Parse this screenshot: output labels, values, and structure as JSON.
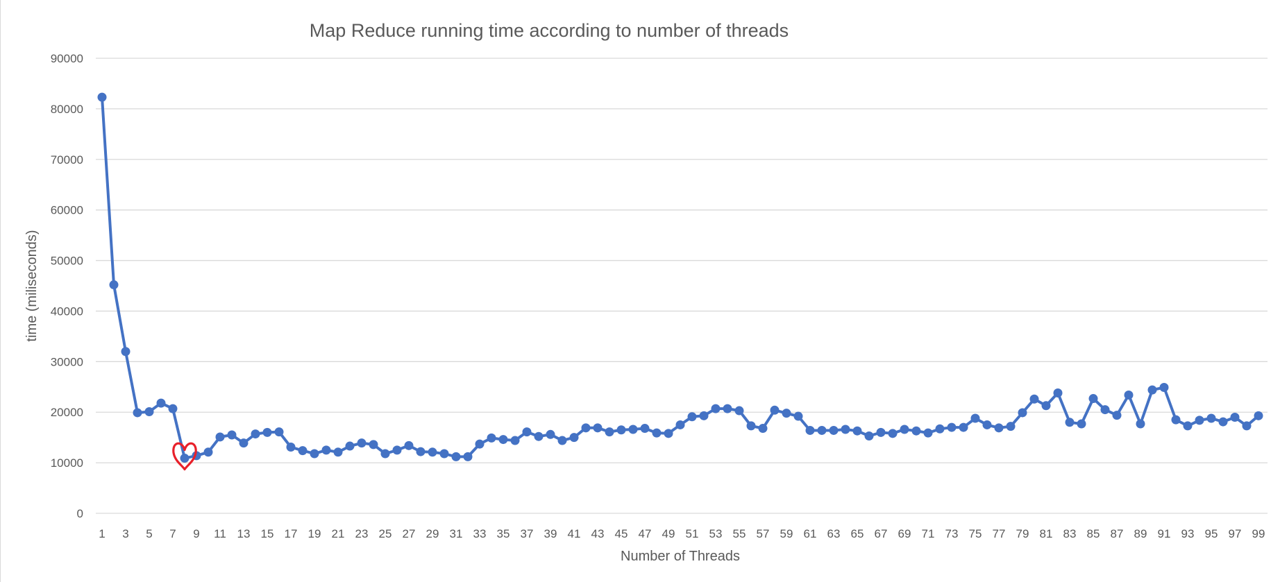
{
  "chart_data": {
    "type": "line",
    "title": "Map Reduce running time according to number of threads",
    "xlabel": "Number of Threads",
    "ylabel": "time (miliseconds)",
    "ylim": [
      0,
      90000
    ],
    "yticks": [
      "0",
      "10000",
      "20000",
      "30000",
      "40000",
      "50000",
      "60000",
      "70000",
      "80000",
      "90000"
    ],
    "grid": true,
    "legend": "none",
    "x": [
      1,
      2,
      3,
      4,
      5,
      6,
      7,
      8,
      9,
      10,
      11,
      12,
      13,
      14,
      15,
      16,
      17,
      18,
      19,
      20,
      21,
      22,
      23,
      24,
      25,
      26,
      27,
      28,
      29,
      30,
      31,
      32,
      33,
      34,
      35,
      36,
      37,
      38,
      39,
      40,
      41,
      42,
      43,
      44,
      45,
      46,
      47,
      48,
      49,
      50,
      51,
      52,
      53,
      54,
      55,
      56,
      57,
      58,
      59,
      60,
      61,
      62,
      63,
      64,
      65,
      66,
      67,
      68,
      69,
      70,
      71,
      72,
      73,
      74,
      75,
      76,
      77,
      78,
      79,
      80,
      81,
      82,
      83,
      84,
      85,
      86,
      87,
      88,
      89,
      90,
      91,
      92,
      93,
      94,
      95,
      96,
      97,
      98,
      99
    ],
    "xtick_labels": [
      "1",
      "3",
      "5",
      "7",
      "9",
      "11",
      "13",
      "15",
      "17",
      "19",
      "21",
      "23",
      "25",
      "27",
      "29",
      "31",
      "33",
      "35",
      "37",
      "39",
      "41",
      "43",
      "45",
      "47",
      "49",
      "51",
      "53",
      "55",
      "57",
      "59",
      "61",
      "63",
      "65",
      "67",
      "69",
      "71",
      "73",
      "75",
      "77",
      "79",
      "81",
      "83",
      "85",
      "87",
      "89",
      "91",
      "93",
      "95",
      "97",
      "99"
    ],
    "series": [
      {
        "color": "#4472c4",
        "values": [
          82300,
          45200,
          32000,
          19900,
          20100,
          21800,
          20700,
          10900,
          11400,
          12100,
          15100,
          15500,
          13900,
          15700,
          16000,
          16100,
          13100,
          12400,
          11800,
          12500,
          12100,
          13300,
          13900,
          13600,
          11800,
          12500,
          13400,
          12200,
          12100,
          11800,
          11200,
          11200,
          13700,
          14900,
          14600,
          14400,
          16100,
          15200,
          15600,
          14400,
          15000,
          16900,
          16900,
          16100,
          16500,
          16600,
          16800,
          15900,
          15800,
          17500,
          19100,
          19300,
          20700,
          20700,
          20300,
          17300,
          16800,
          20400,
          19800,
          19200,
          16400,
          16400,
          16400,
          16600,
          16300,
          15300,
          16000,
          15800,
          16600,
          16300,
          15900,
          16700,
          17000,
          17000,
          18800,
          17500,
          16900,
          17200,
          19900,
          22600,
          21300,
          23800,
          18000,
          17700,
          22700,
          20500,
          19400,
          23400,
          17700,
          24400,
          24900,
          18500,
          17300,
          18400,
          18800,
          18100,
          19000,
          17300,
          19300
        ]
      }
    ],
    "annotation": {
      "type": "heart",
      "color": "#e8202a",
      "x": 8
    }
  }
}
